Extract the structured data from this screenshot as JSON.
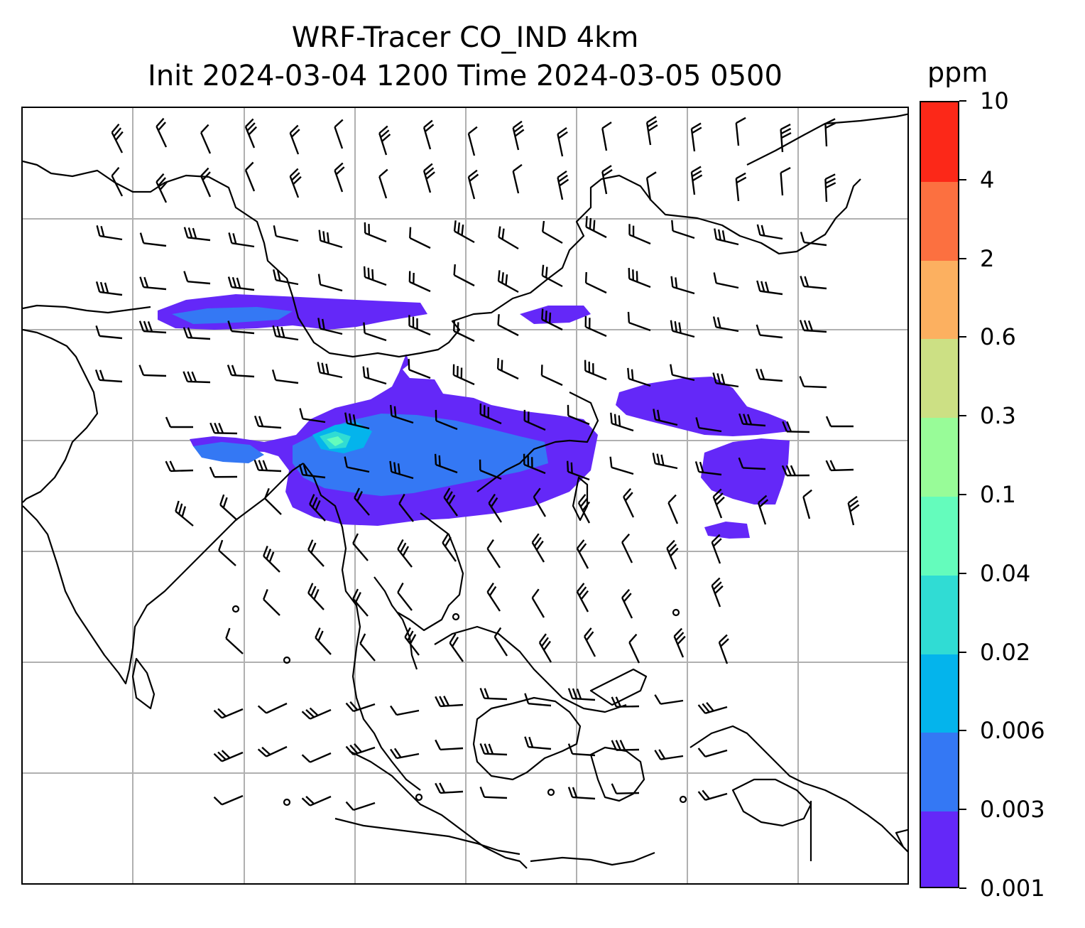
{
  "title": {
    "line1": "WRF-Tracer CO_IND 4km",
    "line2": "Init 2024-03-04 1200 Time 2024-03-05 0500"
  },
  "colorbar": {
    "unit": "ppm",
    "labels": [
      "0.001",
      "0.003",
      "0.006",
      "0.02",
      "0.04",
      "0.1",
      "0.3",
      "0.6",
      "2",
      "4",
      "10"
    ],
    "colors": [
      "#6428f8",
      "#3478f4",
      "#04b4ec",
      "#30dcd4",
      "#64fcbc",
      "#98fc98",
      "#cce084",
      "#fcb060",
      "#fc7040",
      "#fc2818"
    ]
  },
  "map": {
    "colors": {
      "land_outline": "#000000",
      "gridline": "#b0b0b0",
      "barb": "#000000"
    },
    "layers": [
      "coastlines",
      "country borders",
      "gridlines",
      "CO tracer concentration",
      "wind barbs"
    ]
  }
}
